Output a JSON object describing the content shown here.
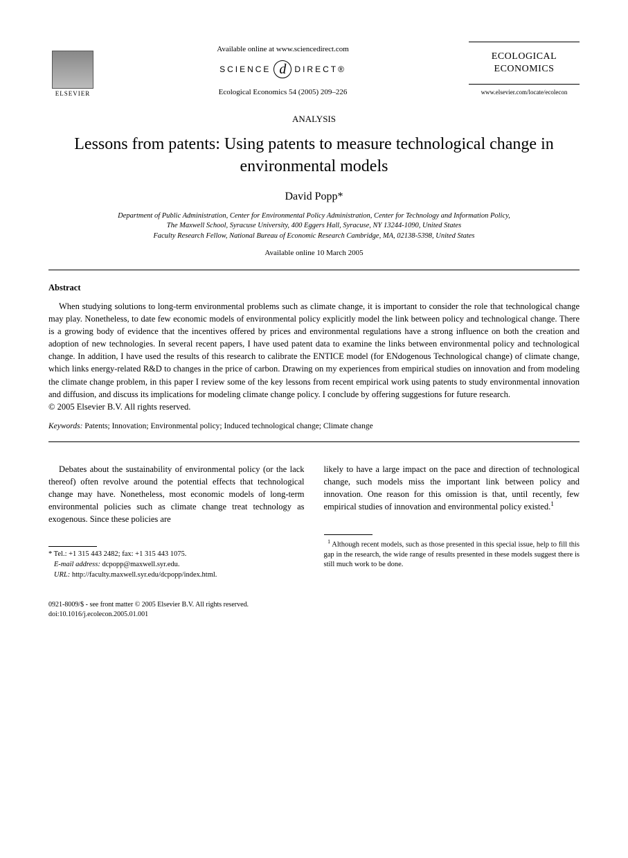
{
  "header": {
    "publisher_name": "ELSEVIER",
    "available_online": "Available online at www.sciencedirect.com",
    "science_direct_left": "SCIENCE",
    "science_direct_right": "DIRECT®",
    "citation": "Ecological Economics 54 (2005) 209–226",
    "journal_name_line1": "ECOLOGICAL",
    "journal_name_line2": "ECONOMICS",
    "journal_url": "www.elsevier.com/locate/ecolecon"
  },
  "article": {
    "section": "ANALYSIS",
    "title": "Lessons from patents: Using patents to measure technological change in environmental models",
    "author": "David Popp*",
    "affiliation_line1": "Department of Public Administration, Center for Environmental Policy Administration, Center for Technology and Information Policy,",
    "affiliation_line2": "The Maxwell School, Syracuse University, 400 Eggers Hall, Syracuse, NY 13244-1090, United States",
    "affiliation_line3": "Faculty Research Fellow, National Bureau of Economic Research Cambridge, MA, 02138-5398, United States",
    "available_date": "Available online 10 March 2005"
  },
  "abstract": {
    "heading": "Abstract",
    "text": "When studying solutions to long-term environmental problems such as climate change, it is important to consider the role that technological change may play. Nonetheless, to date few economic models of environmental policy explicitly model the link between policy and technological change. There is a growing body of evidence that the incentives offered by prices and environmental regulations have a strong influence on both the creation and adoption of new technologies. In several recent papers, I have used patent data to examine the links between environmental policy and technological change. In addition, I have used the results of this research to calibrate the ENTICE model (for ENdogenous Technological change) of climate change, which links energy-related R&D to changes in the price of carbon. Drawing on my experiences from empirical studies on innovation and from modeling the climate change problem, in this paper I review some of the key lessons from recent empirical work using patents to study environmental innovation and diffusion, and discuss its implications for modeling climate change policy. I conclude by offering suggestions for future research.",
    "copyright": "© 2005 Elsevier B.V. All rights reserved."
  },
  "keywords": {
    "label": "Keywords:",
    "text": " Patents; Innovation; Environmental policy; Induced technological change; Climate change"
  },
  "body": {
    "col1_p1": "Debates about the sustainability of environmental policy (or the lack thereof) often revolve around the potential effects that technological change may have. Nonetheless, most economic models of long-term environmental policies such as climate change treat technology as exogenous. Since these policies are",
    "col2_p1_pre": "likely to have a large impact on the pace and direction of technological change, such models miss the important link between policy and innovation. One reason for this omission is that, until recently, few empirical studies of innovation and environmental policy existed.",
    "col2_p1_sup": "1"
  },
  "footnotes": {
    "corr_star": "*",
    "corr_text": " Tel.: +1 315 443 2482; fax: +1 315 443 1075.",
    "email_label": "E-mail address:",
    "email_value": " dcpopp@maxwell.syr.edu.",
    "url_label": "URL:",
    "url_value": " http://faculty.maxwell.syr.edu/dcpopp/index.html.",
    "fn1_sup": "1",
    "fn1_text": " Although recent models, such as those presented in this special issue, help to fill this gap in the research, the wide range of results presented in these models suggest there is still much work to be done."
  },
  "bottom": {
    "issn_line": "0921-8009/$ - see front matter © 2005 Elsevier B.V. All rights reserved.",
    "doi_line": "doi:10.1016/j.ecolecon.2005.01.001"
  }
}
